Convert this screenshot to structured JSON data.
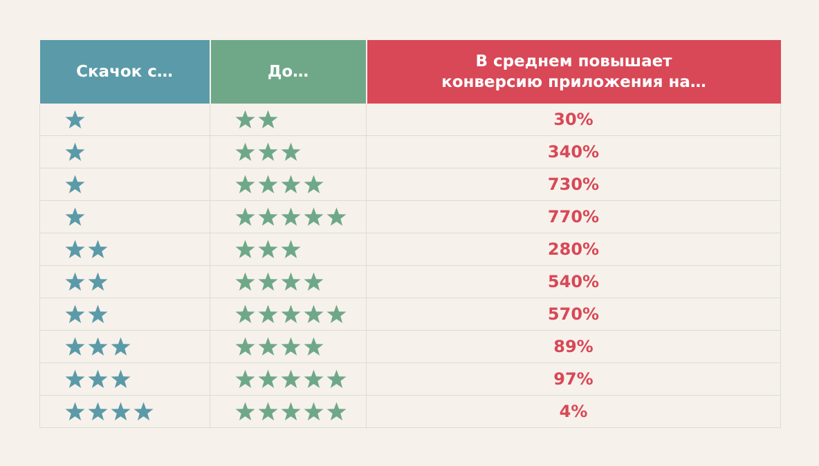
{
  "header": {
    "from_label": "Скачок с…",
    "to_label": "До…",
    "conversion_label": "В среднем повышает конверсию приложения на…"
  },
  "colors": {
    "from": "#5b9aa8",
    "to": "#6fa889",
    "conversion": "#d84857",
    "background": "#f7f1eb"
  },
  "chart_data": {
    "type": "table",
    "columns": [
      "Скачок с…",
      "До…",
      "В среднем повышает конверсию приложения на…"
    ],
    "rows": [
      {
        "from_stars": 1,
        "to_stars": 2,
        "increase": "30%"
      },
      {
        "from_stars": 1,
        "to_stars": 3,
        "increase": "340%"
      },
      {
        "from_stars": 1,
        "to_stars": 4,
        "increase": "730%"
      },
      {
        "from_stars": 1,
        "to_stars": 5,
        "increase": "770%"
      },
      {
        "from_stars": 2,
        "to_stars": 3,
        "increase": "280%"
      },
      {
        "from_stars": 2,
        "to_stars": 4,
        "increase": "540%"
      },
      {
        "from_stars": 2,
        "to_stars": 5,
        "increase": "570%"
      },
      {
        "from_stars": 3,
        "to_stars": 4,
        "increase": "89%"
      },
      {
        "from_stars": 3,
        "to_stars": 5,
        "increase": "97%"
      },
      {
        "from_stars": 4,
        "to_stars": 5,
        "increase": "4%"
      }
    ]
  }
}
